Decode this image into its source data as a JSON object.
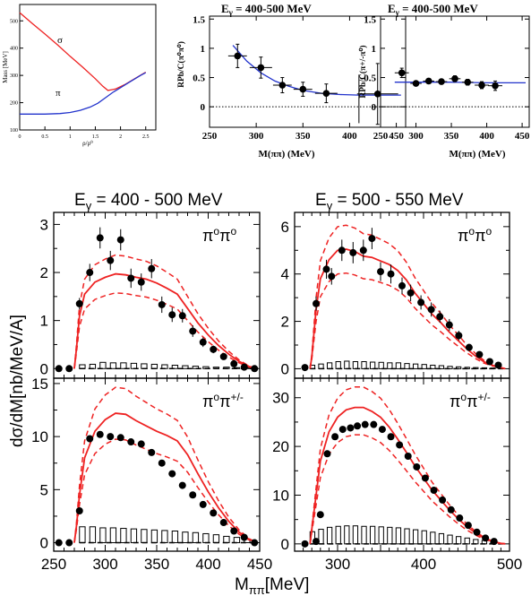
{
  "colors": {
    "red": "#ee2222",
    "blue": "#2233cc",
    "purple": "#8833aa",
    "black": "#000000"
  },
  "chart_data": [
    {
      "id": "mass-panel",
      "type": "line",
      "xlabel": "ρ/ρ⁰",
      "ylabel": "Mass [MeV]",
      "xlim": [
        0,
        2.7
      ],
      "ylim": [
        100,
        560
      ],
      "xticks": [
        0,
        0.5,
        1,
        1.5,
        2,
        2.5
      ],
      "xtick_labels": [
        "0",
        "0.5",
        "1",
        "1.5",
        "2",
        "2.5"
      ],
      "yticks": [
        100,
        200,
        300,
        400,
        500
      ],
      "ytick_labels": [
        "100",
        "200",
        "300",
        "400",
        "500"
      ],
      "series": [
        {
          "name": "σ",
          "color": "#ee2222",
          "x": [
            0,
            0.25,
            0.5,
            0.75,
            1.0,
            1.25,
            1.5,
            1.65,
            1.75,
            1.9,
            2.1,
            2.3,
            2.5
          ],
          "y": [
            530,
            490,
            452,
            412,
            370,
            330,
            288,
            260,
            245,
            250,
            268,
            290,
            312
          ]
        },
        {
          "name": "π",
          "color": "#2233cc",
          "x": [
            0,
            0.5,
            0.8,
            1.0,
            1.2,
            1.4,
            1.55,
            1.7,
            1.85,
            2.0,
            2.2,
            2.4,
            2.5
          ],
          "y": [
            158,
            158,
            160,
            164,
            172,
            184,
            198,
            218,
            238,
            255,
            278,
            300,
            310
          ]
        }
      ],
      "annotations": [
        "σ",
        "π"
      ]
    },
    {
      "id": "ratio-pi0pi0",
      "type": "scatter",
      "title": "Eγ = 400-500 MeV",
      "title_main": "E",
      "title_sub": "γ",
      "title_rest": " = 400-500 MeV",
      "ylabel": "RPb/C(π⁰π⁰)",
      "xlabel": "M(ππ) (MeV)",
      "xlim": [
        250,
        460
      ],
      "ylim": [
        -0.35,
        1.55
      ],
      "xticks": [
        250,
        300,
        350,
        400,
        450
      ],
      "xtick_labels": [
        "250",
        "300",
        "350",
        "400",
        "450"
      ],
      "yticks": [
        0,
        0.5,
        1,
        1.5
      ],
      "ytick_labels": [
        "0",
        "0.5",
        "1",
        "1.5"
      ],
      "points": [
        {
          "x": 280,
          "y": 0.87,
          "xerr": 10,
          "yerr": 0.2
        },
        {
          "x": 305,
          "y": 0.67,
          "xerr": 12,
          "yerr": 0.18
        },
        {
          "x": 328,
          "y": 0.37,
          "xerr": 10,
          "yerr": 0.13
        },
        {
          "x": 350,
          "y": 0.3,
          "xerr": 10,
          "yerr": 0.12
        },
        {
          "x": 375,
          "y": 0.23,
          "xerr": 12,
          "yerr": 0.16
        },
        {
          "x": 430,
          "y": 0.22,
          "xerr": 22,
          "yerr": 0.52
        }
      ],
      "error_only": [
        {
          "x": 410,
          "ylow": -0.28,
          "yhigh": 0.55
        }
      ],
      "fit": {
        "color": "#2233cc",
        "x": [
          275,
          290,
          305,
          320,
          335,
          350,
          370,
          390,
          410,
          430,
          455
        ],
        "y": [
          1.05,
          0.78,
          0.58,
          0.44,
          0.35,
          0.28,
          0.23,
          0.21,
          0.2,
          0.2,
          0.2
        ]
      },
      "reference_line": 0
    },
    {
      "id": "ratio-pi0pipm",
      "type": "scatter",
      "title": "Eγ = 400-500 MeV",
      "title_main": "E",
      "title_sub": "γ",
      "title_rest": " = 400-500 MeV",
      "ylabel": "RPb/C(π+/-π⁰)",
      "xlabel": "M(ππ) (MeV)",
      "xlim": [
        250,
        460
      ],
      "ylim": [
        -0.35,
        1.55
      ],
      "xticks": [
        250,
        300,
        350,
        400,
        450
      ],
      "xtick_labels": [
        "250",
        "300",
        "350",
        "400",
        "450"
      ],
      "yticks": [
        0,
        0.5,
        1,
        1.5
      ],
      "ytick_labels": [
        "0",
        "0.5",
        "1",
        "1.5"
      ],
      "points": [
        {
          "x": 280,
          "y": 0.58,
          "xerr": 10,
          "yerr": 0.08
        },
        {
          "x": 300,
          "y": 0.4,
          "xerr": 8,
          "yerr": 0.04
        },
        {
          "x": 318,
          "y": 0.44,
          "xerr": 8,
          "yerr": 0.04
        },
        {
          "x": 336,
          "y": 0.43,
          "xerr": 8,
          "yerr": 0.04
        },
        {
          "x": 355,
          "y": 0.48,
          "xerr": 8,
          "yerr": 0.05
        },
        {
          "x": 373,
          "y": 0.42,
          "xerr": 8,
          "yerr": 0.05
        },
        {
          "x": 393,
          "y": 0.37,
          "xerr": 10,
          "yerr": 0.06
        },
        {
          "x": 412,
          "y": 0.36,
          "xerr": 10,
          "yerr": 0.08
        }
      ],
      "fit": {
        "color": "#2233cc",
        "x": [
          270,
          300,
          350,
          400,
          455
        ],
        "y": [
          0.42,
          0.42,
          0.42,
          0.41,
          0.41
        ]
      },
      "reference_line": 0
    },
    {
      "id": "cs-400-500-pi0pi0",
      "type": "scatter",
      "header": "Eγ = 400 - 500 MeV",
      "header_main": "E",
      "header_sub": "γ",
      "header_rest": " = 400 - 500 MeV",
      "channel_label": "π⁰π⁰",
      "xlim": [
        250,
        450
      ],
      "ylim": [
        -0.2,
        3.25
      ],
      "yticks": [
        0,
        1,
        2,
        3
      ],
      "ytick_labels": [
        "0",
        "1",
        "2",
        "3"
      ],
      "points": [
        {
          "x": 255,
          "y": 0.0
        },
        {
          "x": 265,
          "y": 0.0
        },
        {
          "x": 275,
          "y": 1.35
        },
        {
          "x": 285,
          "y": 2.0
        },
        {
          "x": 295,
          "y": 2.72
        },
        {
          "x": 305,
          "y": 2.25
        },
        {
          "x": 315,
          "y": 2.68
        },
        {
          "x": 325,
          "y": 1.88
        },
        {
          "x": 335,
          "y": 1.8
        },
        {
          "x": 345,
          "y": 2.08
        },
        {
          "x": 355,
          "y": 1.33
        },
        {
          "x": 365,
          "y": 1.12
        },
        {
          "x": 375,
          "y": 1.1
        },
        {
          "x": 385,
          "y": 0.78
        },
        {
          "x": 395,
          "y": 0.55
        },
        {
          "x": 405,
          "y": 0.4
        },
        {
          "x": 415,
          "y": 0.25
        },
        {
          "x": 425,
          "y": 0.1
        },
        {
          "x": 435,
          "y": 0.03
        },
        {
          "x": 445,
          "y": 0.0
        }
      ],
      "yerr": [
        0.03,
        0.03,
        0.12,
        0.18,
        0.22,
        0.2,
        0.22,
        0.2,
        0.18,
        0.2,
        0.17,
        0.15,
        0.14,
        0.12,
        0.1,
        0.08,
        0.06,
        0.05,
        0.03,
        0.03
      ],
      "theory": {
        "x": [
          270,
          272,
          275,
          280,
          290,
          300,
          310,
          320,
          330,
          340,
          350,
          360,
          370,
          380,
          390,
          400,
          410,
          420,
          430,
          440,
          448
        ],
        "y": [
          0.0,
          0.4,
          1.1,
          1.55,
          1.8,
          1.9,
          1.97,
          1.95,
          1.9,
          1.86,
          1.78,
          1.67,
          1.55,
          1.25,
          0.95,
          0.7,
          0.48,
          0.3,
          0.15,
          0.04,
          0.0
        ]
      },
      "band_scale": [
        1.2,
        0.8
      ],
      "hist": [
        0.08,
        0.09,
        0.13,
        0.12,
        0.12,
        0.11,
        0.1,
        0.09,
        0.08,
        0.07,
        0.06,
        0.05,
        0.04,
        0.03,
        0.03,
        0.02,
        0.02
      ],
      "hist_start": 275,
      "hist_width": 10
    },
    {
      "id": "cs-500-550-pi0pi0",
      "type": "scatter",
      "header": "Eγ = 500 - 550 MeV",
      "header_main": "E",
      "header_sub": "γ",
      "header_rest": " = 500 - 550 MeV",
      "channel_label": "π⁰π⁰",
      "xlim": [
        250,
        500
      ],
      "ylim": [
        -0.4,
        6.6
      ],
      "yticks": [
        0,
        2,
        4,
        6
      ],
      "ytick_labels": [
        "0",
        "2",
        "4",
        "6"
      ],
      "points": [
        {
          "x": 262,
          "y": 0.05
        },
        {
          "x": 275,
          "y": 2.75
        },
        {
          "x": 287,
          "y": 4.2
        },
        {
          "x": 293,
          "y": 3.9
        },
        {
          "x": 305,
          "y": 5.0
        },
        {
          "x": 318,
          "y": 4.9
        },
        {
          "x": 330,
          "y": 5.0
        },
        {
          "x": 340,
          "y": 5.5
        },
        {
          "x": 350,
          "y": 4.1
        },
        {
          "x": 362,
          "y": 4.0
        },
        {
          "x": 375,
          "y": 3.5
        },
        {
          "x": 385,
          "y": 3.2
        },
        {
          "x": 397,
          "y": 2.8
        },
        {
          "x": 409,
          "y": 2.5
        },
        {
          "x": 419,
          "y": 2.2
        },
        {
          "x": 430,
          "y": 1.85
        },
        {
          "x": 441,
          "y": 1.4
        },
        {
          "x": 453,
          "y": 0.9
        },
        {
          "x": 465,
          "y": 0.6
        },
        {
          "x": 477,
          "y": 0.3
        },
        {
          "x": 487,
          "y": 0.15
        }
      ],
      "yerr": [
        0.08,
        0.3,
        0.4,
        0.35,
        0.45,
        0.45,
        0.45,
        0.45,
        0.4,
        0.4,
        0.35,
        0.35,
        0.3,
        0.3,
        0.25,
        0.25,
        0.2,
        0.15,
        0.12,
        0.1,
        0.08
      ],
      "theory": {
        "x": [
          268,
          270,
          275,
          280,
          290,
          300,
          310,
          320,
          330,
          340,
          350,
          360,
          370,
          380,
          390,
          400,
          410,
          420,
          430,
          440,
          450,
          460,
          470,
          480,
          490,
          495
        ],
        "y": [
          0.0,
          0.5,
          2.5,
          3.8,
          4.6,
          5.0,
          5.05,
          4.95,
          4.75,
          4.7,
          4.55,
          4.4,
          4.15,
          3.75,
          3.2,
          2.75,
          2.3,
          1.95,
          1.55,
          1.2,
          0.85,
          0.55,
          0.3,
          0.15,
          0.05,
          0.0
        ]
      },
      "band_scale": [
        1.2,
        0.8
      ],
      "hist": [
        0.15,
        0.2,
        0.25,
        0.3,
        0.32,
        0.3,
        0.3,
        0.28,
        0.27,
        0.25,
        0.25,
        0.22,
        0.2,
        0.18,
        0.15,
        0.13,
        0.1,
        0.08,
        0.06,
        0.05,
        0.04,
        0.03
      ],
      "hist_start": 268,
      "hist_width": 10
    },
    {
      "id": "cs-400-500-pi0pipm",
      "type": "scatter",
      "channel_label": "π⁰π+/-",
      "xlim": [
        250,
        450
      ],
      "ylim": [
        -0.8,
        15.5
      ],
      "yticks": [
        0,
        5,
        10,
        15
      ],
      "ytick_labels": [
        "0",
        "5",
        "10",
        "15"
      ],
      "xticks": [
        250,
        300,
        350,
        400,
        450
      ],
      "xtick_labels": [
        "250",
        "300",
        "350",
        "400",
        "450"
      ],
      "points": [
        {
          "x": 255,
          "y": 0.0
        },
        {
          "x": 265,
          "y": 0.0
        },
        {
          "x": 275,
          "y": 3.0
        },
        {
          "x": 285,
          "y": 9.8
        },
        {
          "x": 295,
          "y": 10.2
        },
        {
          "x": 305,
          "y": 10.0
        },
        {
          "x": 315,
          "y": 9.9
        },
        {
          "x": 325,
          "y": 9.5
        },
        {
          "x": 335,
          "y": 9.3
        },
        {
          "x": 345,
          "y": 8.5
        },
        {
          "x": 355,
          "y": 7.5
        },
        {
          "x": 365,
          "y": 6.5
        },
        {
          "x": 375,
          "y": 5.4
        },
        {
          "x": 385,
          "y": 4.5
        },
        {
          "x": 395,
          "y": 3.6
        },
        {
          "x": 405,
          "y": 2.8
        },
        {
          "x": 415,
          "y": 1.9
        },
        {
          "x": 425,
          "y": 1.1
        },
        {
          "x": 435,
          "y": 0.5
        },
        {
          "x": 445,
          "y": 0.0
        }
      ],
      "theory": {
        "x": [
          270,
          272,
          275,
          280,
          290,
          300,
          310,
          320,
          330,
          340,
          350,
          360,
          370,
          380,
          390,
          400,
          410,
          420,
          430,
          440,
          448
        ],
        "y": [
          0.0,
          1.5,
          4.5,
          8.0,
          10.5,
          11.6,
          12.2,
          12.1,
          11.5,
          11.0,
          10.5,
          10.1,
          9.6,
          8.3,
          6.5,
          4.8,
          3.3,
          2.0,
          1.0,
          0.3,
          0.0
        ]
      },
      "band_scale": [
        1.2,
        0.8
      ],
      "hist": [
        1.5,
        1.5,
        1.4,
        1.4,
        1.35,
        1.3,
        1.25,
        1.2,
        1.15,
        1.1,
        1.0,
        0.95,
        0.85,
        0.75,
        0.6,
        0.5,
        0.35
      ],
      "hist_start": 275,
      "hist_width": 10
    },
    {
      "id": "cs-500-550-pi0pipm",
      "type": "scatter",
      "channel_label": "π⁰π+/-",
      "xlim": [
        250,
        500
      ],
      "ylim": [
        -1.5,
        34
      ],
      "yticks": [
        0,
        10,
        20,
        30
      ],
      "ytick_labels": [
        "0",
        "10",
        "20",
        "30"
      ],
      "xticks": [
        300,
        400,
        500
      ],
      "xtick_labels": [
        "300",
        "400",
        "500"
      ],
      "points": [
        {
          "x": 262,
          "y": 0.0
        },
        {
          "x": 275,
          "y": 0.5
        },
        {
          "x": 280,
          "y": 6.0
        },
        {
          "x": 288,
          "y": 18.5
        },
        {
          "x": 297,
          "y": 22.0
        },
        {
          "x": 306,
          "y": 23.5
        },
        {
          "x": 315,
          "y": 23.8
        },
        {
          "x": 323,
          "y": 24.2
        },
        {
          "x": 332,
          "y": 24.5
        },
        {
          "x": 342,
          "y": 24.5
        },
        {
          "x": 352,
          "y": 23.5
        },
        {
          "x": 362,
          "y": 22.0
        },
        {
          "x": 372,
          "y": 20.3
        },
        {
          "x": 382,
          "y": 18.0
        },
        {
          "x": 392,
          "y": 15.8
        },
        {
          "x": 402,
          "y": 13.5
        },
        {
          "x": 412,
          "y": 11.0
        },
        {
          "x": 422,
          "y": 9.0
        },
        {
          "x": 432,
          "y": 7.0
        },
        {
          "x": 442,
          "y": 5.3
        },
        {
          "x": 452,
          "y": 3.8
        },
        {
          "x": 462,
          "y": 2.4
        },
        {
          "x": 472,
          "y": 1.2
        },
        {
          "x": 482,
          "y": 0.5
        }
      ],
      "theory": {
        "x": [
          268,
          270,
          275,
          280,
          290,
          300,
          310,
          320,
          330,
          340,
          350,
          360,
          370,
          380,
          390,
          400,
          410,
          420,
          430,
          440,
          450,
          460,
          470,
          480,
          490,
          495
        ],
        "y": [
          0.0,
          3.0,
          10.0,
          17.0,
          23.0,
          26.0,
          27.5,
          28.0,
          28.0,
          27.2,
          26.0,
          24.0,
          21.5,
          18.8,
          16.0,
          13.5,
          11.0,
          9.0,
          7.0,
          5.2,
          3.6,
          2.3,
          1.2,
          0.5,
          0.1,
          0.0
        ]
      },
      "band_scale": [
        1.15,
        0.8
      ],
      "hist": [
        2.5,
        3.0,
        3.4,
        3.6,
        3.7,
        3.7,
        3.6,
        3.6,
        3.5,
        3.4,
        3.3,
        3.1,
        2.9,
        2.7,
        2.4,
        2.1,
        1.8,
        1.5,
        1.2,
        0.9,
        0.7,
        0.5
      ],
      "hist_start": 268,
      "hist_width": 10
    }
  ],
  "shared_labels": {
    "ylabel": "dσ/dM[nb/MeV/A]",
    "xlabel_main": "M",
    "xlabel_sub": "ππ",
    "xlabel_rest": "[MeV]"
  }
}
